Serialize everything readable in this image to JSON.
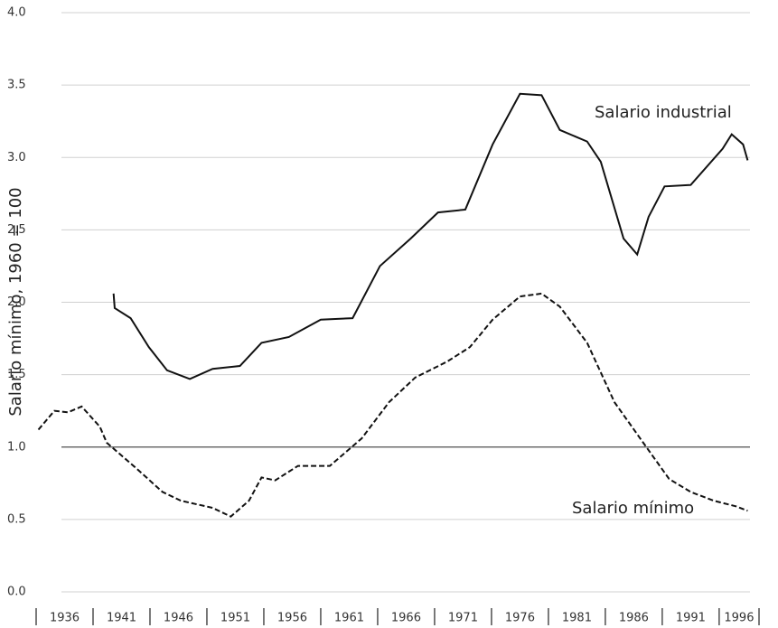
{
  "chart_data": {
    "type": "line",
    "ylabel": "Salario mínimo, 1960 = 100",
    "xlim": [
      1936,
      1999.5
    ],
    "xticks": [
      1936,
      1941,
      1946,
      1951,
      1956,
      1961,
      1966,
      1971,
      1976,
      1981,
      1986,
      1991,
      1996
    ],
    "ylim": [
      0,
      4
    ],
    "yticks": [
      {
        "value": 0,
        "label": "0.0"
      },
      0.5,
      {
        "value": 1,
        "label": "1.0"
      },
      1.5,
      {
        "value": 2,
        "label": "2.0"
      },
      2.5,
      {
        "value": 3,
        "label": "3.0"
      },
      3.5,
      {
        "value": 4,
        "label": "4.0"
      }
    ],
    "grid": true,
    "reference_line": 1,
    "series": [
      {
        "name": "Salario industrial",
        "color": "#111111",
        "dash": false,
        "x": [
          1942.8,
          1942.9,
          1944.3,
          1945.9,
          1947.5,
          1949.5,
          1951.5,
          1953.9,
          1955.8,
          1958.2,
          1961,
          1963.8,
          1966.2,
          1968.9,
          1971.3,
          1973.7,
          1976.1,
          1978.5,
          1980.4,
          1982,
          1984.4,
          1985.6,
          1987.6,
          1988.8,
          1989.8,
          1991.2,
          1993.5,
          1996.3,
          1997.1,
          1998.1,
          1998.5
        ],
        "values": [
          2.06,
          1.96,
          1.89,
          1.69,
          1.53,
          1.47,
          1.54,
          1.56,
          1.72,
          1.76,
          1.88,
          1.89,
          2.25,
          2.44,
          2.62,
          2.64,
          3.09,
          3.44,
          3.43,
          3.19,
          3.11,
          2.97,
          2.44,
          2.33,
          2.59,
          2.8,
          2.81,
          3.06,
          3.16,
          3.09,
          2.98
        ]
      },
      {
        "name": "Salario mínimo",
        "color": "#111111",
        "dash": true,
        "x": [
          1936.2,
          1937.6,
          1938.8,
          1940,
          1941.6,
          1942.2,
          1944.7,
          1947.1,
          1948.7,
          1951.5,
          1953.1,
          1954.7,
          1955.8,
          1957,
          1959,
          1961.8,
          1964.6,
          1967,
          1969.3,
          1972.1,
          1974.1,
          1976.1,
          1978.5,
          1980.4,
          1982,
          1984.4,
          1986.8,
          1989.6,
          1991.6,
          1993.5,
          1995.5,
          1997.5,
          1998.5
        ],
        "values": [
          1.12,
          1.25,
          1.24,
          1.28,
          1.14,
          1.03,
          0.86,
          0.69,
          0.63,
          0.58,
          0.52,
          0.63,
          0.79,
          0.77,
          0.87,
          0.87,
          1.06,
          1.31,
          1.48,
          1.59,
          1.69,
          1.88,
          2.04,
          2.06,
          1.97,
          1.72,
          1.31,
          1.0,
          0.78,
          0.69,
          0.63,
          0.59,
          0.56
        ]
      }
    ]
  }
}
